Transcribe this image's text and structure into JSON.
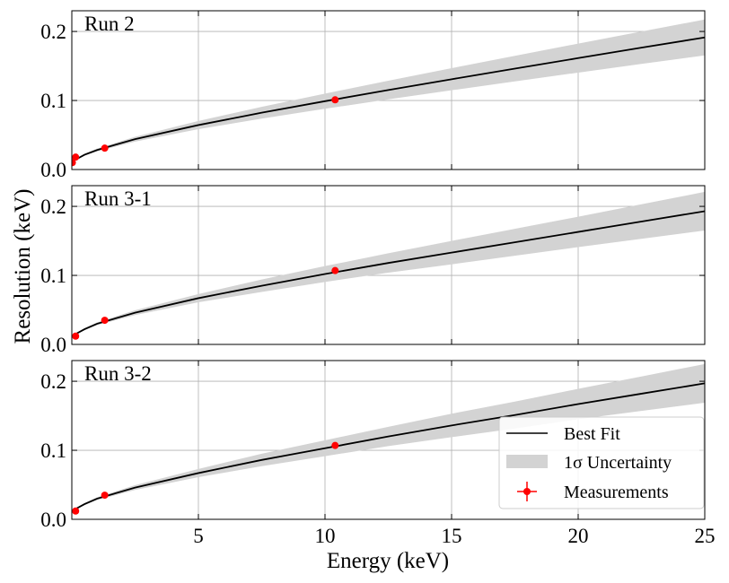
{
  "chart_data": {
    "type": "line",
    "xlabel": "Energy (keV)",
    "ylabel": "Resolution (keV)",
    "xlim": [
      0,
      25
    ],
    "ylim": [
      0,
      0.23
    ],
    "x_ticks": [
      "5",
      "10",
      "15",
      "20",
      "25"
    ],
    "y_ticks": [
      "0.0",
      "0.1",
      "0.2"
    ],
    "grid": true,
    "legend": {
      "placement": "lower-right of bottom panel",
      "entries": [
        "Best Fit",
        "1σ Uncertainty",
        "Measurements"
      ]
    },
    "colors": {
      "fit": "#000000",
      "band": "#d3d3d3",
      "measurement": "#ff0000",
      "grid": "#b0b0b0"
    },
    "energies": [
      0,
      0.5,
      1,
      2.5,
      5,
      7.5,
      10,
      12.5,
      15,
      17.5,
      20,
      22.5,
      25
    ],
    "panels": [
      {
        "title": "Run 2",
        "best_fit": [
          0.0114,
          0.0214,
          0.0283,
          0.044,
          0.0644,
          0.0823,
          0.099,
          0.1151,
          0.1308,
          0.1462,
          0.1614,
          0.1765,
          0.1914
        ],
        "lower": [
          0.0104,
          0.0199,
          0.0263,
          0.0405,
          0.0584,
          0.0738,
          0.088,
          0.1016,
          0.1148,
          0.1277,
          0.1404,
          0.153,
          0.1654
        ],
        "upper": [
          0.0124,
          0.0229,
          0.0303,
          0.0475,
          0.0704,
          0.0908,
          0.11,
          0.1286,
          0.1468,
          0.1647,
          0.1824,
          0.2,
          0.2174
        ],
        "measurements": [
          [
            0.02,
            0.01
          ],
          [
            0.15,
            0.018
          ],
          [
            1.3,
            0.031
          ],
          [
            10.4,
            0.101
          ]
        ]
      },
      {
        "title": "Run 3-1",
        "best_fit": [
          0.012,
          0.022,
          0.03,
          0.046,
          0.067,
          0.085,
          0.102,
          0.118,
          0.133,
          0.148,
          0.163,
          0.178,
          0.193
        ],
        "lower": [
          0.011,
          0.0205,
          0.028,
          0.0425,
          0.061,
          0.076,
          0.0905,
          0.104,
          0.116,
          0.1285,
          0.141,
          0.153,
          0.165
        ],
        "upper": [
          0.013,
          0.0235,
          0.032,
          0.0495,
          0.073,
          0.094,
          0.1135,
          0.132,
          0.15,
          0.1675,
          0.185,
          0.203,
          0.221
        ],
        "measurements": [
          [
            0.15,
            0.012
          ],
          [
            1.3,
            0.035
          ],
          [
            10.4,
            0.107
          ]
        ]
      },
      {
        "title": "Run 3-2",
        "best_fit": [
          0.012,
          0.022,
          0.03,
          0.046,
          0.067,
          0.086,
          0.103,
          0.12,
          0.136,
          0.151,
          0.167,
          0.182,
          0.197
        ],
        "lower": [
          0.011,
          0.0205,
          0.028,
          0.0425,
          0.061,
          0.077,
          0.0915,
          0.106,
          0.119,
          0.1315,
          0.145,
          0.157,
          0.169
        ],
        "upper": [
          0.013,
          0.0235,
          0.032,
          0.0495,
          0.073,
          0.095,
          0.1145,
          0.134,
          0.153,
          0.1705,
          0.189,
          0.207,
          0.225
        ],
        "measurements": [
          [
            0.15,
            0.012
          ],
          [
            1.3,
            0.035
          ],
          [
            10.4,
            0.107
          ]
        ]
      }
    ]
  }
}
